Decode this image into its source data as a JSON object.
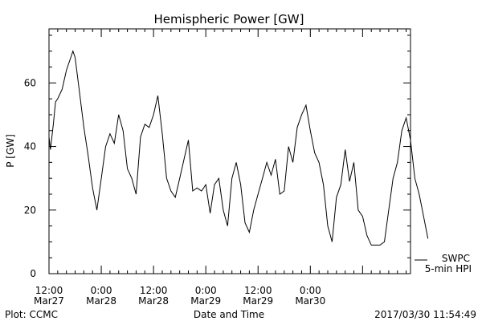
{
  "chart_data": {
    "type": "line",
    "title": "Hemispheric Power [GW]",
    "ylabel": "P [GW]",
    "xlabel": "Date and Time",
    "ylim": [
      0,
      77
    ],
    "yticks": [
      0,
      20,
      40,
      60
    ],
    "xlim": [
      "2017-03-27 12:00",
      "2017-03-30 23:00"
    ],
    "xticks": [
      {
        "x": "2017-03-27 12:00",
        "line1": "12:00",
        "line2": "Mar27"
      },
      {
        "x": "2017-03-28 00:00",
        "line1": "0:00",
        "line2": "Mar28"
      },
      {
        "x": "2017-03-28 12:00",
        "line1": "12:00",
        "line2": "Mar28"
      },
      {
        "x": "2017-03-29 00:00",
        "line1": "0:00",
        "line2": "Mar29"
      },
      {
        "x": "2017-03-29 12:00",
        "line1": "12:00",
        "line2": "Mar29"
      },
      {
        "x": "2017-03-30 00:00",
        "line1": "0:00",
        "line2": "Mar30"
      }
    ],
    "legend": {
      "source": "SWPC",
      "label": "5-min HPI",
      "position": "bottom-right"
    },
    "series": [
      {
        "color": "#000000",
        "points": [
          [
            "2017-03-27 12:00",
            43
          ],
          [
            "2017-03-27 12:20",
            39
          ],
          [
            "2017-03-27 13:00",
            47
          ],
          [
            "2017-03-27 13:30",
            54
          ],
          [
            "2017-03-27 14:00",
            55
          ],
          [
            "2017-03-27 15:00",
            58
          ],
          [
            "2017-03-27 16:00",
            64
          ],
          [
            "2017-03-27 17:00",
            68
          ],
          [
            "2017-03-27 17:30",
            70
          ],
          [
            "2017-03-27 18:00",
            68
          ],
          [
            "2017-03-27 19:00",
            57
          ],
          [
            "2017-03-27 20:00",
            46
          ],
          [
            "2017-03-27 21:00",
            37
          ],
          [
            "2017-03-27 22:00",
            27
          ],
          [
            "2017-03-27 23:00",
            20
          ],
          [
            "2017-03-28 00:00",
            30
          ],
          [
            "2017-03-28 01:00",
            40
          ],
          [
            "2017-03-28 02:00",
            44
          ],
          [
            "2017-03-28 03:00",
            41
          ],
          [
            "2017-03-28 04:00",
            50
          ],
          [
            "2017-03-28 05:00",
            45
          ],
          [
            "2017-03-28 06:00",
            33
          ],
          [
            "2017-03-28 07:00",
            30
          ],
          [
            "2017-03-28 08:00",
            25
          ],
          [
            "2017-03-28 09:00",
            43
          ],
          [
            "2017-03-28 10:00",
            47
          ],
          [
            "2017-03-28 11:00",
            46
          ],
          [
            "2017-03-28 12:00",
            50
          ],
          [
            "2017-03-28 13:00",
            56
          ],
          [
            "2017-03-28 14:00",
            44
          ],
          [
            "2017-03-28 15:00",
            30
          ],
          [
            "2017-03-28 16:00",
            26
          ],
          [
            "2017-03-28 17:00",
            24
          ],
          [
            "2017-03-28 18:00",
            30
          ],
          [
            "2017-03-28 19:00",
            36
          ],
          [
            "2017-03-28 20:00",
            42
          ],
          [
            "2017-03-28 21:00",
            26
          ],
          [
            "2017-03-28 22:00",
            27
          ],
          [
            "2017-03-28 23:00",
            26
          ],
          [
            "2017-03-29 00:00",
            28
          ],
          [
            "2017-03-29 01:00",
            19
          ],
          [
            "2017-03-29 02:00",
            28
          ],
          [
            "2017-03-29 03:00",
            30
          ],
          [
            "2017-03-29 04:00",
            20
          ],
          [
            "2017-03-29 05:00",
            15
          ],
          [
            "2017-03-29 06:00",
            30
          ],
          [
            "2017-03-29 07:00",
            35
          ],
          [
            "2017-03-29 08:00",
            28
          ],
          [
            "2017-03-29 09:00",
            16
          ],
          [
            "2017-03-29 10:00",
            13
          ],
          [
            "2017-03-29 11:00",
            20
          ],
          [
            "2017-03-29 12:00",
            25
          ],
          [
            "2017-03-29 13:00",
            30
          ],
          [
            "2017-03-29 14:00",
            35
          ],
          [
            "2017-03-29 15:00",
            31
          ],
          [
            "2017-03-29 16:00",
            36
          ],
          [
            "2017-03-29 17:00",
            25
          ],
          [
            "2017-03-29 18:00",
            26
          ],
          [
            "2017-03-29 19:00",
            40
          ],
          [
            "2017-03-29 20:00",
            35
          ],
          [
            "2017-03-29 21:00",
            46
          ],
          [
            "2017-03-29 22:00",
            50
          ],
          [
            "2017-03-29 23:00",
            53
          ],
          [
            "2017-03-30 00:00",
            45
          ],
          [
            "2017-03-30 01:00",
            38
          ],
          [
            "2017-03-30 02:00",
            35
          ],
          [
            "2017-03-30 03:00",
            28
          ],
          [
            "2017-03-30 04:00",
            15
          ],
          [
            "2017-03-30 05:00",
            10
          ],
          [
            "2017-03-30 06:00",
            24
          ],
          [
            "2017-03-30 07:00",
            28
          ],
          [
            "2017-03-30 08:00",
            39
          ],
          [
            "2017-03-30 09:00",
            29
          ],
          [
            "2017-03-30 10:00",
            35
          ],
          [
            "2017-03-30 11:00",
            20
          ],
          [
            "2017-03-30 12:00",
            18
          ],
          [
            "2017-03-30 13:00",
            12
          ],
          [
            "2017-03-30 14:00",
            9
          ],
          [
            "2017-03-30 15:00",
            9
          ],
          [
            "2017-03-30 16:00",
            9
          ],
          [
            "2017-03-30 17:00",
            10
          ],
          [
            "2017-03-30 18:00",
            20
          ],
          [
            "2017-03-30 19:00",
            30
          ],
          [
            "2017-03-30 20:00",
            35
          ],
          [
            "2017-03-30 21:00",
            45
          ],
          [
            "2017-03-30 22:00",
            49
          ],
          [
            "2017-03-30 23:00",
            42
          ],
          [
            "2017-03-31 00:00",
            30
          ],
          [
            "2017-03-31 01:00",
            25
          ],
          [
            "2017-03-31 02:00",
            18
          ],
          [
            "2017-03-31 03:00",
            11
          ]
        ]
      }
    ],
    "footer_left": "Plot: CCMC",
    "footer_right": "2017/03/30 11:54:49"
  }
}
